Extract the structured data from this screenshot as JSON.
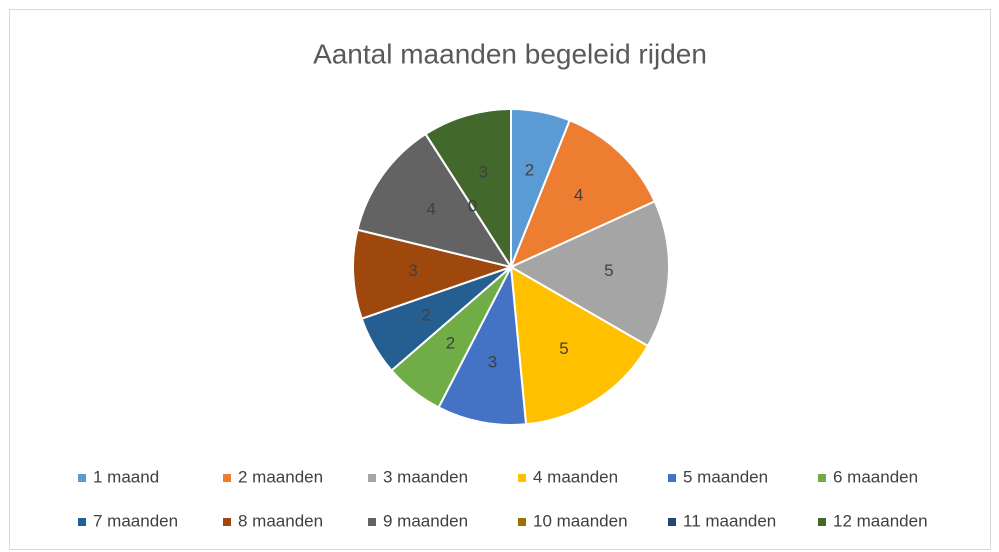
{
  "chart_data": {
    "type": "pie",
    "title": "Aantal maanden begeleid rijden",
    "categories": [
      "1 maand",
      "2 maanden",
      "3 maanden",
      "4 maanden",
      "5 maanden",
      "6 maanden",
      "7 maanden",
      "8 maanden",
      "9 maanden",
      "10 maanden",
      "11 maanden",
      "12 maanden"
    ],
    "values": [
      2,
      4,
      5,
      5,
      3,
      2,
      2,
      3,
      4,
      0,
      0,
      3
    ],
    "colors": [
      "#5B9BD5",
      "#ED7D31",
      "#A5A5A5",
      "#FFC000",
      "#4472C4",
      "#70AD47",
      "#255E91",
      "#9E480E",
      "#636363",
      "#997300",
      "#264478",
      "#43682B"
    ],
    "legend": "bottom"
  }
}
